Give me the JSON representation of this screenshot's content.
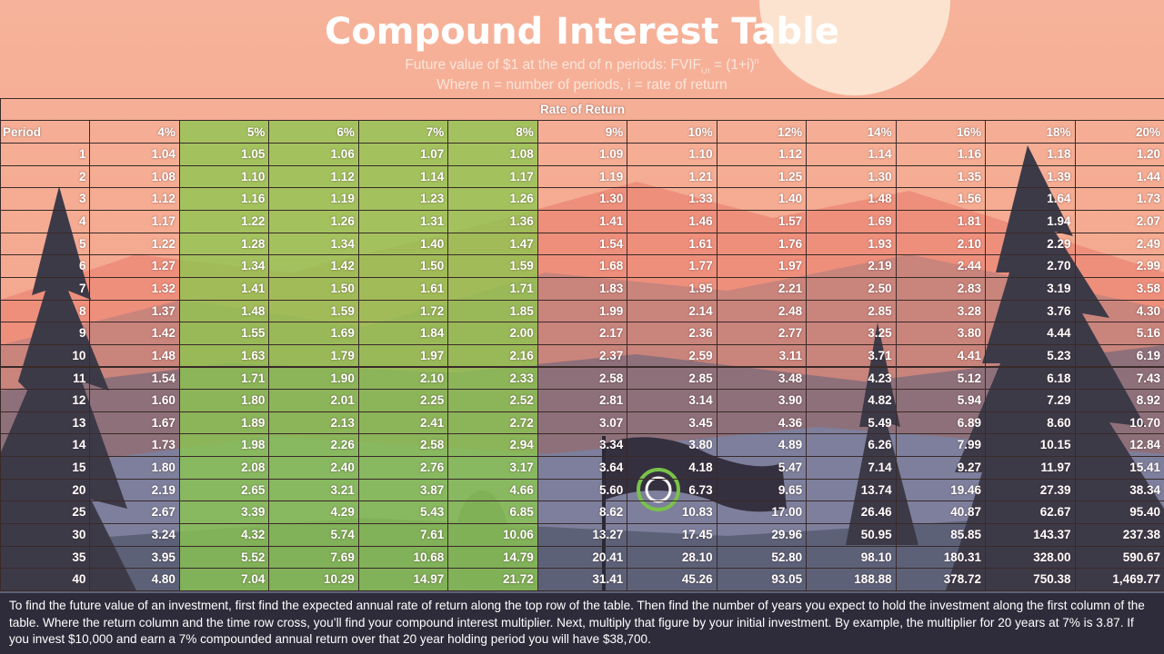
{
  "header": {
    "title": "Compound Interest Table",
    "subtitle": {
      "text": "Future value of $1 at the end of n periods: FVIF",
      "sub": "i,n",
      "formula": "= (1+i)",
      "sup": "n"
    },
    "subtitle2": "Where n = number of periods, i = rate of return"
  },
  "table": {
    "group_header": "Rate of Return",
    "columns": [
      "Period",
      "4%",
      "5%",
      "6%",
      "7%",
      "8%",
      "9%",
      "10%",
      "12%",
      "14%",
      "16%",
      "18%",
      "20%"
    ],
    "rows": [
      [
        "1",
        "1.04",
        "1.05",
        "1.06",
        "1.07",
        "1.08",
        "1.09",
        "1.10",
        "1.12",
        "1.14",
        "1.16",
        "1.18",
        "1.20"
      ],
      [
        "2",
        "1.08",
        "1.10",
        "1.12",
        "1.14",
        "1.17",
        "1.19",
        "1.21",
        "1.25",
        "1.30",
        "1.35",
        "1.39",
        "1.44"
      ],
      [
        "3",
        "1.12",
        "1.16",
        "1.19",
        "1.23",
        "1.26",
        "1.30",
        "1.33",
        "1.40",
        "1.48",
        "1.56",
        "1.64",
        "1.73"
      ],
      [
        "4",
        "1.17",
        "1.22",
        "1.26",
        "1.31",
        "1.36",
        "1.41",
        "1.46",
        "1.57",
        "1.69",
        "1.81",
        "1.94",
        "2.07"
      ],
      [
        "5",
        "1.22",
        "1.28",
        "1.34",
        "1.40",
        "1.47",
        "1.54",
        "1.61",
        "1.76",
        "1.93",
        "2.10",
        "2.29",
        "2.49"
      ],
      [
        "6",
        "1.27",
        "1.34",
        "1.42",
        "1.50",
        "1.59",
        "1.68",
        "1.77",
        "1.97",
        "2.19",
        "2.44",
        "2.70",
        "2.99"
      ],
      [
        "7",
        "1.32",
        "1.41",
        "1.50",
        "1.61",
        "1.71",
        "1.83",
        "1.95",
        "2.21",
        "2.50",
        "2.83",
        "3.19",
        "3.58"
      ],
      [
        "8",
        "1.37",
        "1.48",
        "1.59",
        "1.72",
        "1.85",
        "1.99",
        "2.14",
        "2.48",
        "2.85",
        "3.28",
        "3.76",
        "4.30"
      ],
      [
        "9",
        "1.42",
        "1.55",
        "1.69",
        "1.84",
        "2.00",
        "2.17",
        "2.36",
        "2.77",
        "3.25",
        "3.80",
        "4.44",
        "5.16"
      ],
      [
        "10",
        "1.48",
        "1.63",
        "1.79",
        "1.97",
        "2.16",
        "2.37",
        "2.59",
        "3.11",
        "3.71",
        "4.41",
        "5.23",
        "6.19"
      ],
      [
        "11",
        "1.54",
        "1.71",
        "1.90",
        "2.10",
        "2.33",
        "2.58",
        "2.85",
        "3.48",
        "4.23",
        "5.12",
        "6.18",
        "7.43"
      ],
      [
        "12",
        "1.60",
        "1.80",
        "2.01",
        "2.25",
        "2.52",
        "2.81",
        "3.14",
        "3.90",
        "4.82",
        "5.94",
        "7.29",
        "8.92"
      ],
      [
        "13",
        "1.67",
        "1.89",
        "2.13",
        "2.41",
        "2.72",
        "3.07",
        "3.45",
        "4.36",
        "5.49",
        "6.89",
        "8.60",
        "10.70"
      ],
      [
        "14",
        "1.73",
        "1.98",
        "2.26",
        "2.58",
        "2.94",
        "3.34",
        "3.80",
        "4.89",
        "6.26",
        "7.99",
        "10.15",
        "12.84"
      ],
      [
        "15",
        "1.80",
        "2.08",
        "2.40",
        "2.76",
        "3.17",
        "3.64",
        "4.18",
        "5.47",
        "7.14",
        "9.27",
        "11.97",
        "15.41"
      ],
      [
        "20",
        "2.19",
        "2.65",
        "3.21",
        "3.87",
        "4.66",
        "5.60",
        "6.73",
        "9.65",
        "13.74",
        "19.46",
        "27.39",
        "38.34"
      ],
      [
        "25",
        "2.67",
        "3.39",
        "4.29",
        "5.43",
        "6.85",
        "8.62",
        "10.83",
        "17.00",
        "26.46",
        "40.87",
        "62.67",
        "95.40"
      ],
      [
        "30",
        "3.24",
        "4.32",
        "5.74",
        "7.61",
        "10.06",
        "13.27",
        "17.45",
        "29.96",
        "50.95",
        "85.85",
        "143.37",
        "237.38"
      ],
      [
        "35",
        "3.95",
        "5.52",
        "7.69",
        "10.68",
        "14.79",
        "20.41",
        "28.10",
        "52.80",
        "98.10",
        "180.31",
        "328.00",
        "590.67"
      ],
      [
        "40",
        "4.80",
        "7.04",
        "10.29",
        "14.97",
        "21.72",
        "31.41",
        "45.26",
        "93.05",
        "188.88",
        "378.72",
        "750.38",
        "1,469.77"
      ]
    ]
  },
  "footer": {
    "text": "To find the future value of an investment, first find the expected annual rate of return along the top row of the table. Then find the number of years you expect to hold the investment along the first column of the table. Where the return column and the time row cross, you’ll find your compound interest multiplier. Next, multiply that figure by your initial investment. By example, the multiplier for 20 years at 7% is 3.87. If you invest $10,000 and earn a 7% compounded annual return over that 20 year holding period you will have $38,700."
  }
}
